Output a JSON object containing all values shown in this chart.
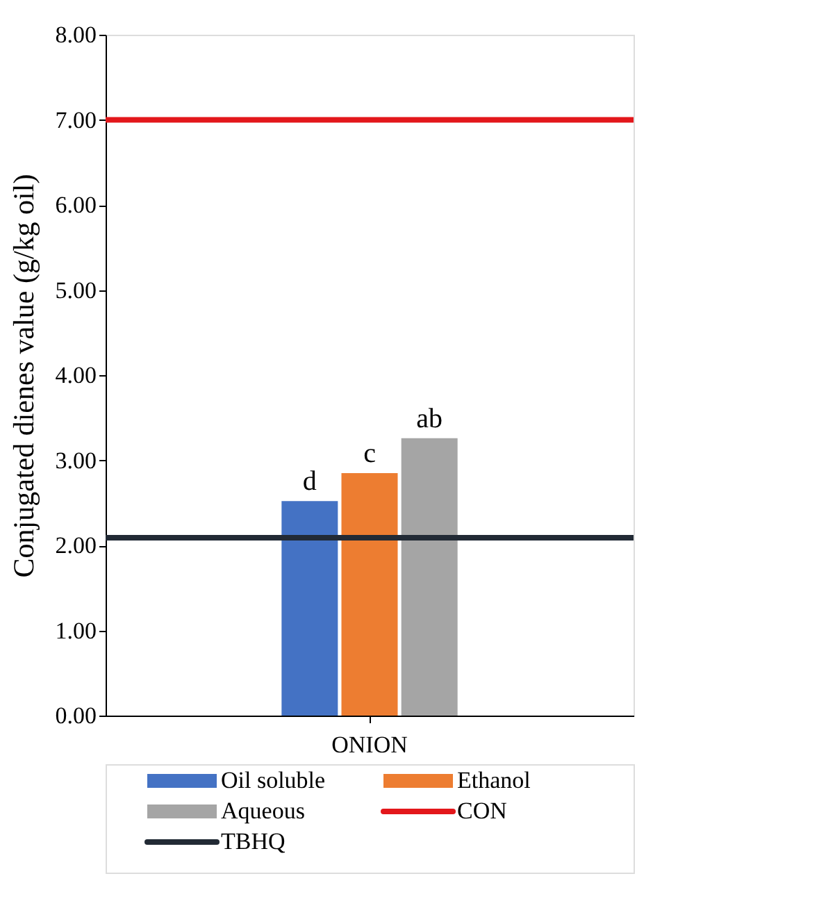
{
  "chart_data": {
    "type": "bar",
    "ylabel": "Conjugated dienes value (g/kg oil)",
    "categories": [
      "ONION"
    ],
    "series": [
      {
        "name": "Oil soluble",
        "color": "#4472c4",
        "values": [
          2.52
        ],
        "value_labels": [
          "d"
        ]
      },
      {
        "name": "Ethanol",
        "color": "#ed7d31",
        "values": [
          2.85
        ],
        "value_labels": [
          "c"
        ]
      },
      {
        "name": "Aqueous",
        "color": "#a5a5a5",
        "values": [
          3.26
        ],
        "value_labels": [
          "ab"
        ]
      }
    ],
    "ref_lines": [
      {
        "axis": "y",
        "value": 7.0,
        "label": "CON",
        "color": "#e3171b"
      },
      {
        "axis": "y",
        "value": 2.09,
        "label": "TBHQ",
        "color": "#222a35"
      }
    ],
    "ylim": [
      0,
      8
    ],
    "yticks": [
      {
        "value": 0,
        "label": "0.00"
      },
      {
        "value": 1,
        "label": "1.00"
      },
      {
        "value": 2,
        "label": "2.00"
      },
      {
        "value": 3,
        "label": "3.00"
      },
      {
        "value": 4,
        "label": "4.00"
      },
      {
        "value": 5,
        "label": "5.00"
      },
      {
        "value": 6,
        "label": "6.00"
      },
      {
        "value": 7,
        "label": "7.00"
      },
      {
        "value": 8,
        "label": "8.00"
      }
    ],
    "grid": false,
    "legend": "bottom"
  }
}
